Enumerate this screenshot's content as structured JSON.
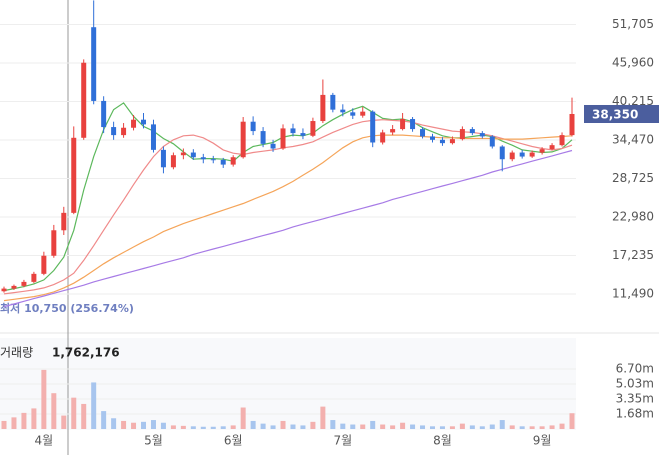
{
  "chart_data": {
    "type": "candlestick",
    "categories": [
      null,
      null,
      null,
      null,
      "4월",
      null,
      null,
      null,
      null,
      null,
      null,
      null,
      null,
      null,
      null,
      "5월",
      null,
      null,
      null,
      null,
      null,
      null,
      null,
      "6월",
      null,
      null,
      null,
      null,
      null,
      null,
      null,
      null,
      null,
      null,
      "7월",
      null,
      null,
      null,
      null,
      null,
      null,
      null,
      null,
      null,
      "8월",
      null,
      null,
      null,
      null,
      null,
      null,
      null,
      null,
      null,
      "9월",
      null,
      null,
      null
    ],
    "open": [
      11900,
      12300,
      12700,
      13300,
      14500,
      17200,
      21000,
      23600,
      34800,
      51300,
      40300,
      36400,
      35200,
      36300,
      37500,
      36800,
      33000,
      30400,
      32200,
      32600,
      31900,
      31600,
      31500,
      30800,
      31900,
      37200,
      35800,
      33900,
      33200,
      36200,
      35500,
      35100,
      37300,
      41200,
      39000,
      38600,
      38100,
      38700,
      34100,
      35600,
      36100,
      37600,
      36100,
      35000,
      34500,
      34000,
      34600,
      36100,
      35500,
      35000,
      33500,
      31600,
      32600,
      32000,
      32600,
      33100,
      33700,
      35200
    ],
    "high": [
      12600,
      12900,
      13600,
      14800,
      17800,
      21800,
      24500,
      36500,
      46500,
      55300,
      41000,
      37200,
      37000,
      38200,
      38500,
      37500,
      33500,
      32600,
      33200,
      33100,
      32400,
      32100,
      31800,
      32200,
      37900,
      38000,
      36400,
      34500,
      36800,
      36900,
      36200,
      37800,
      43500,
      41500,
      39800,
      39200,
      39400,
      38900,
      36000,
      36700,
      38500,
      37900,
      36400,
      35400,
      34900,
      35000,
      36500,
      36400,
      35800,
      35200,
      33700,
      32900,
      33000,
      32900,
      33400,
      34000,
      35600,
      40800
    ],
    "low": [
      11700,
      12100,
      12500,
      13100,
      14300,
      16900,
      20300,
      23400,
      34500,
      39800,
      35500,
      34500,
      34800,
      35900,
      36200,
      32600,
      29500,
      30100,
      31600,
      31500,
      31000,
      31000,
      30300,
      30500,
      31700,
      35200,
      33400,
      32700,
      33000,
      35000,
      34600,
      34900,
      37000,
      38600,
      38000,
      37600,
      37800,
      33400,
      33800,
      35200,
      35900,
      35700,
      34700,
      34100,
      33600,
      33800,
      34400,
      35200,
      34700,
      33200,
      29800,
      31300,
      31700,
      31800,
      32300,
      32900,
      33500,
      35000
    ],
    "close": [
      12300,
      12700,
      13300,
      14500,
      17200,
      21000,
      23600,
      34800,
      46000,
      40300,
      36400,
      35200,
      36300,
      37500,
      36800,
      33000,
      30400,
      32200,
      32600,
      31900,
      31600,
      31500,
      30800,
      31900,
      37200,
      35800,
      33900,
      33200,
      36200,
      35500,
      35100,
      37300,
      41200,
      39000,
      38600,
      38100,
      38700,
      34100,
      35600,
      36100,
      37600,
      36100,
      35000,
      34500,
      34000,
      34600,
      36100,
      35500,
      35000,
      33500,
      31600,
      32600,
      32000,
      32600,
      33100,
      33700,
      35200,
      38350
    ],
    "up_color": "#e8413e",
    "down_color": "#2f6fd8",
    "moving_averages": [
      {
        "color": "#5cb85c",
        "values": [
          12000,
          12300,
          12600,
          13000,
          13600,
          15000,
          17000,
          21000,
          27000,
          32000,
          36000,
          39000,
          40000,
          38000,
          36500,
          35800,
          34700,
          33900,
          32700,
          31600,
          31700,
          31700,
          31600,
          31300,
          32600,
          33500,
          33800,
          34100,
          34900,
          35200,
          35100,
          35500,
          36600,
          37500,
          38300,
          39000,
          39500,
          38600,
          37700,
          37500,
          37600,
          37200,
          36300,
          35700,
          35100,
          34800,
          34800,
          35000,
          35200,
          35000,
          34300,
          33700,
          33000,
          32800,
          32600,
          32700,
          33200,
          34500
        ]
      },
      {
        "color": "#f08a8a",
        "values": [
          11500,
          11700,
          11900,
          12100,
          12400,
          12900,
          13600,
          14600,
          16500,
          18700,
          21000,
          23300,
          25500,
          27800,
          30000,
          32000,
          33500,
          34500,
          35100,
          35200,
          34800,
          34000,
          33000,
          32500,
          32300,
          32600,
          32800,
          33000,
          33300,
          33500,
          33800,
          34200,
          34900,
          35600,
          36200,
          36800,
          37200,
          37400,
          37500,
          37400,
          37300,
          37100,
          36700,
          36400,
          36100,
          35800,
          35700,
          35600,
          35400,
          35100,
          34700,
          34300,
          33900,
          33500,
          33200,
          33000,
          33200,
          33700
        ]
      },
      {
        "color": "#f5a55a",
        "values": [
          10500,
          10700,
          10900,
          11100,
          11400,
          11800,
          12400,
          13100,
          14000,
          15000,
          16000,
          16900,
          17700,
          18500,
          19300,
          20000,
          20800,
          21400,
          22000,
          22500,
          23000,
          23500,
          24000,
          24500,
          25000,
          25600,
          26200,
          26800,
          27500,
          28300,
          29200,
          30100,
          31100,
          32200,
          33300,
          34200,
          34800,
          35100,
          35200,
          35200,
          35200,
          35100,
          35000,
          34900,
          34800,
          34800,
          34700,
          34700,
          34700,
          34700,
          34600,
          34600,
          34600,
          34700,
          34800,
          34900,
          35000,
          35100
        ]
      },
      {
        "color": "#a77be6",
        "values": [
          9600,
          10000,
          10400,
          10800,
          11200,
          11600,
          12000,
          12400,
          12800,
          13300,
          13700,
          14100,
          14500,
          14900,
          15300,
          15700,
          16100,
          16500,
          16900,
          17400,
          17800,
          18200,
          18600,
          19000,
          19400,
          19800,
          20200,
          20600,
          21000,
          21500,
          21900,
          22300,
          22700,
          23100,
          23500,
          23900,
          24300,
          24700,
          25100,
          25600,
          26000,
          26400,
          26800,
          27200,
          27600,
          28000,
          28400,
          28800,
          29200,
          29700,
          30100,
          30500,
          30900,
          31300,
          31700,
          32100,
          32500,
          32900
        ]
      }
    ],
    "ylim": [
      6120,
      55360
    ],
    "yticks": [
      {
        "value": 11490,
        "label": "11,490"
      },
      {
        "value": 17235,
        "label": "17,235"
      },
      {
        "value": 22980,
        "label": "22,980"
      },
      {
        "value": 28725,
        "label": "28,725"
      },
      {
        "value": 34470,
        "label": "34,470"
      },
      {
        "value": 40215,
        "label": "40,215"
      },
      {
        "value": 45960,
        "label": "45,960"
      },
      {
        "value": 51705,
        "label": "51,705"
      }
    ],
    "grid": true,
    "current_price": {
      "value": 38350,
      "label": "38,350"
    },
    "low_annotation": "최저 10,750 (256.74%)",
    "volume": {
      "title": "거래량",
      "current": {
        "value": 1762176,
        "label": "1,762,176"
      },
      "values": [
        900000,
        1300000,
        1800000,
        2300000,
        6600000,
        4000000,
        1500000,
        3500000,
        2800000,
        5200000,
        2000000,
        1200000,
        900000,
        700000,
        800000,
        1000000,
        700000,
        400000,
        350000,
        300000,
        250000,
        250000,
        300000,
        400000,
        2400000,
        900000,
        600000,
        400000,
        900000,
        500000,
        400000,
        800000,
        2500000,
        1000000,
        600000,
        500000,
        500000,
        900000,
        500000,
        400000,
        700000,
        500000,
        400000,
        300000,
        300000,
        300000,
        600000,
        400000,
        300000,
        500000,
        1000000,
        400000,
        300000,
        300000,
        300000,
        400000,
        600000,
        1762176
      ],
      "up_color": "#f3b0ae",
      "down_color": "#a7c5ee",
      "ylim": [
        0,
        9940000
      ],
      "yticks": [
        {
          "value": 1680000,
          "label": "1.68m"
        },
        {
          "value": 3350000,
          "label": "3.35m"
        },
        {
          "value": 5030000,
          "label": "5.03m"
        },
        {
          "value": 6700000,
          "label": "6.70m"
        }
      ]
    }
  }
}
